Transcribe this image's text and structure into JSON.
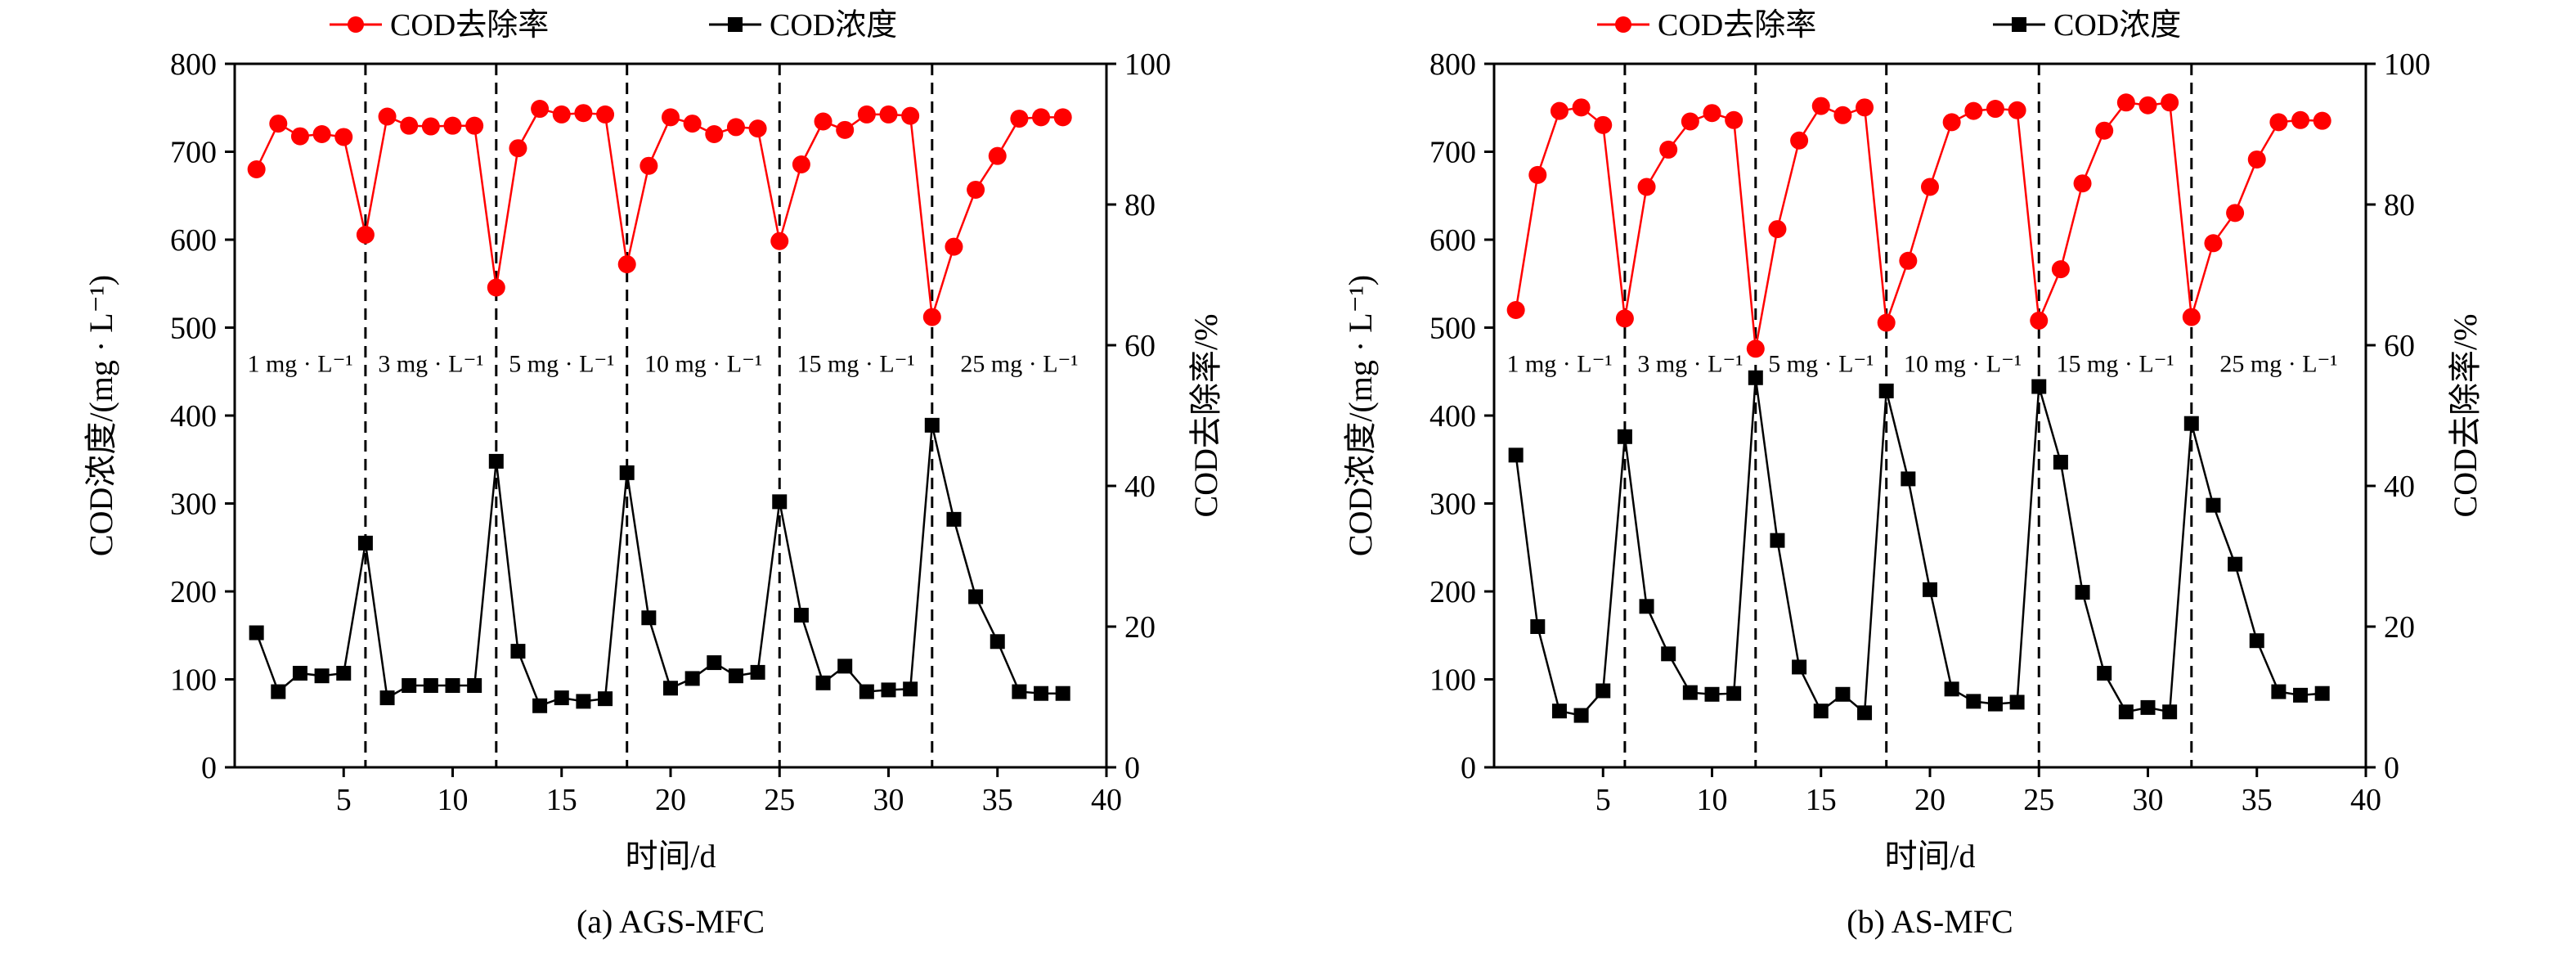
{
  "legend": {
    "removal_label": "COD去除率",
    "concentration_label": "COD浓度"
  },
  "colors": {
    "removal": "#ff0000",
    "concentration": "#000000",
    "axis": "#000000"
  },
  "chart_data": [
    {
      "type": "line",
      "caption": "(a) AGS-MFC",
      "xlabel": "时间/d",
      "ylabel_left": "COD浓度/(mg · L⁻¹)",
      "ylabel_right": "COD去除率/%",
      "xlim": [
        0,
        40
      ],
      "ylim_left": [
        0,
        800
      ],
      "ylim_right": [
        0,
        100
      ],
      "x_ticks": [
        5,
        10,
        15,
        20,
        25,
        30,
        35,
        40
      ],
      "y_left_ticks": [
        0,
        100,
        200,
        300,
        400,
        500,
        600,
        700,
        800
      ],
      "y_right_ticks": [
        0,
        20,
        40,
        60,
        80,
        100
      ],
      "phase_dividers": [
        6,
        12,
        18,
        25,
        32
      ],
      "phase_labels": [
        "1 mg · L⁻¹",
        "3 mg · L⁻¹",
        "5 mg · L⁻¹",
        "10 mg · L⁻¹",
        "15 mg · L⁻¹",
        "25 mg · L⁻¹"
      ],
      "series": [
        {
          "name": "COD去除率",
          "axis": "right",
          "marker": "circle",
          "x": [
            1,
            2,
            3,
            4,
            5,
            6,
            7,
            8,
            9,
            10,
            11,
            12,
            13,
            14,
            15,
            16,
            17,
            18,
            19,
            20,
            21,
            22,
            23,
            24,
            25,
            26,
            27,
            28,
            29,
            30,
            31,
            32,
            33,
            34,
            35,
            36,
            37,
            38
          ],
          "values": [
            85,
            91.5,
            89.7,
            90,
            89.6,
            75.7,
            92.5,
            91.2,
            91.1,
            91.2,
            91.2,
            68.2,
            88,
            93.6,
            92.8,
            93,
            92.8,
            71.5,
            85.5,
            92.4,
            91.5,
            90,
            91,
            90.8,
            74.8,
            85.7,
            91.8,
            90.6,
            92.8,
            92.8,
            92.6,
            64,
            74,
            82.1,
            86.9,
            92.2,
            92.4,
            92.4
          ]
        },
        {
          "name": "COD浓度",
          "axis": "left",
          "marker": "square",
          "x": [
            1,
            2,
            3,
            4,
            5,
            6,
            7,
            8,
            9,
            10,
            11,
            12,
            13,
            14,
            15,
            16,
            17,
            18,
            19,
            20,
            21,
            22,
            23,
            24,
            25,
            26,
            27,
            28,
            29,
            30,
            31,
            32,
            33,
            34,
            35,
            36,
            37,
            38
          ],
          "values": [
            153,
            86,
            107,
            104,
            107,
            255,
            79,
            93,
            93,
            93,
            93,
            348,
            132,
            70,
            79,
            75,
            78,
            335,
            170,
            90,
            101,
            119,
            104,
            108,
            302,
            173,
            96,
            115,
            86,
            88,
            89,
            389,
            282,
            194,
            143,
            86,
            84,
            84
          ]
        }
      ]
    },
    {
      "type": "line",
      "caption": "(b) AS-MFC",
      "xlabel": "时间/d",
      "ylabel_left": "COD浓度/(mg · L⁻¹)",
      "ylabel_right": "COD去除率/%",
      "xlim": [
        0,
        40
      ],
      "ylim_left": [
        0,
        800
      ],
      "ylim_right": [
        0,
        100
      ],
      "x_ticks": [
        5,
        10,
        15,
        20,
        25,
        30,
        35,
        40
      ],
      "y_left_ticks": [
        0,
        100,
        200,
        300,
        400,
        500,
        600,
        700,
        800
      ],
      "y_right_ticks": [
        0,
        20,
        40,
        60,
        80,
        100
      ],
      "phase_dividers": [
        6,
        12,
        18,
        25,
        32
      ],
      "phase_labels": [
        "1 mg · L⁻¹",
        "3 mg · L⁻¹",
        "5 mg · L⁻¹",
        "10 mg · L⁻¹",
        "15 mg · L⁻¹",
        "25 mg · L⁻¹"
      ],
      "series": [
        {
          "name": "COD去除率",
          "axis": "right",
          "marker": "circle",
          "x": [
            1,
            2,
            3,
            4,
            5,
            6,
            7,
            8,
            9,
            10,
            11,
            12,
            13,
            14,
            15,
            16,
            17,
            18,
            19,
            20,
            21,
            22,
            23,
            24,
            25,
            26,
            27,
            28,
            29,
            30,
            31,
            32,
            33,
            34,
            35,
            36,
            37,
            38
          ],
          "values": [
            65,
            84.2,
            93.3,
            93.8,
            91.3,
            63.8,
            82.5,
            87.8,
            91.8,
            93,
            92,
            59.5,
            76.5,
            89.1,
            94,
            92.7,
            93.8,
            63.2,
            72,
            82.5,
            91.7,
            93.3,
            93.6,
            93.4,
            63.5,
            70.8,
            83,
            90.5,
            94.5,
            94.1,
            94.5,
            64,
            74.5,
            78.8,
            86.4,
            91.7,
            92,
            91.9
          ]
        },
        {
          "name": "COD浓度",
          "axis": "left",
          "marker": "square",
          "x": [
            1,
            2,
            3,
            4,
            5,
            6,
            7,
            8,
            9,
            10,
            11,
            12,
            13,
            14,
            15,
            16,
            17,
            18,
            19,
            20,
            21,
            22,
            23,
            24,
            25,
            26,
            27,
            28,
            29,
            30,
            31,
            32,
            33,
            34,
            35,
            36,
            37,
            38
          ],
          "values": [
            355,
            160,
            64,
            59,
            87,
            376,
            183,
            129,
            85,
            83,
            84,
            443,
            258,
            114,
            64,
            83,
            62,
            428,
            328,
            202,
            89,
            75,
            72,
            74,
            433,
            347,
            199,
            107,
            63,
            68,
            63,
            391,
            298,
            231,
            144,
            86,
            82,
            84
          ]
        }
      ]
    }
  ]
}
